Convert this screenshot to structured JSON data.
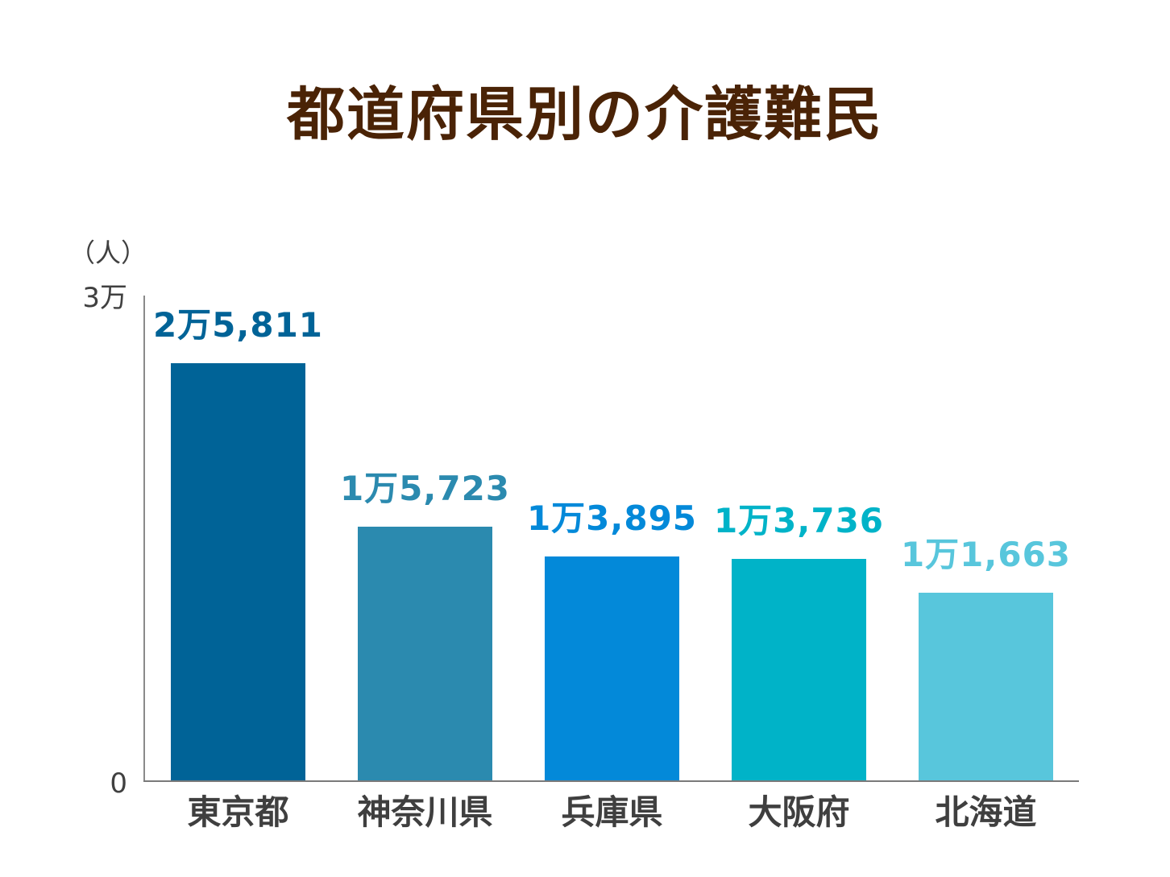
{
  "title": "都道府県別の介護難民",
  "axis": {
    "unit": "（人）",
    "ticks": [
      "3万",
      "0"
    ]
  },
  "bars": [
    {
      "category": "東京都",
      "label": "2万5,811",
      "value": 25811,
      "color": "#006397"
    },
    {
      "category": "神奈川県",
      "label": "1万5,723",
      "value": 15723,
      "color": "#2b8aaf"
    },
    {
      "category": "兵庫県",
      "label": "1万3,895",
      "value": 13895,
      "color": "#0389d9"
    },
    {
      "category": "大阪府",
      "label": "1万3,736",
      "value": 13736,
      "color": "#00b3c8"
    },
    {
      "category": "北海道",
      "label": "1万1,663",
      "value": 11663,
      "color": "#58c6dc"
    }
  ],
  "chart_data": {
    "type": "bar",
    "title": "都道府県別の介護難民",
    "xlabel": "",
    "ylabel": "（人）",
    "categories": [
      "東京都",
      "神奈川県",
      "兵庫県",
      "大阪府",
      "北海道"
    ],
    "values": [
      25811,
      15723,
      13895,
      13736,
      11663
    ],
    "data_labels": [
      "2万5,811",
      "1万5,723",
      "1万3,895",
      "1万3,736",
      "1万1,663"
    ],
    "colors": [
      "#006397",
      "#2b8aaf",
      "#0389d9",
      "#00b3c8",
      "#58c6dc"
    ],
    "ylim": [
      0,
      30000
    ],
    "ytick_labels": [
      "0",
      "3万"
    ],
    "grid": false,
    "legend": null
  }
}
